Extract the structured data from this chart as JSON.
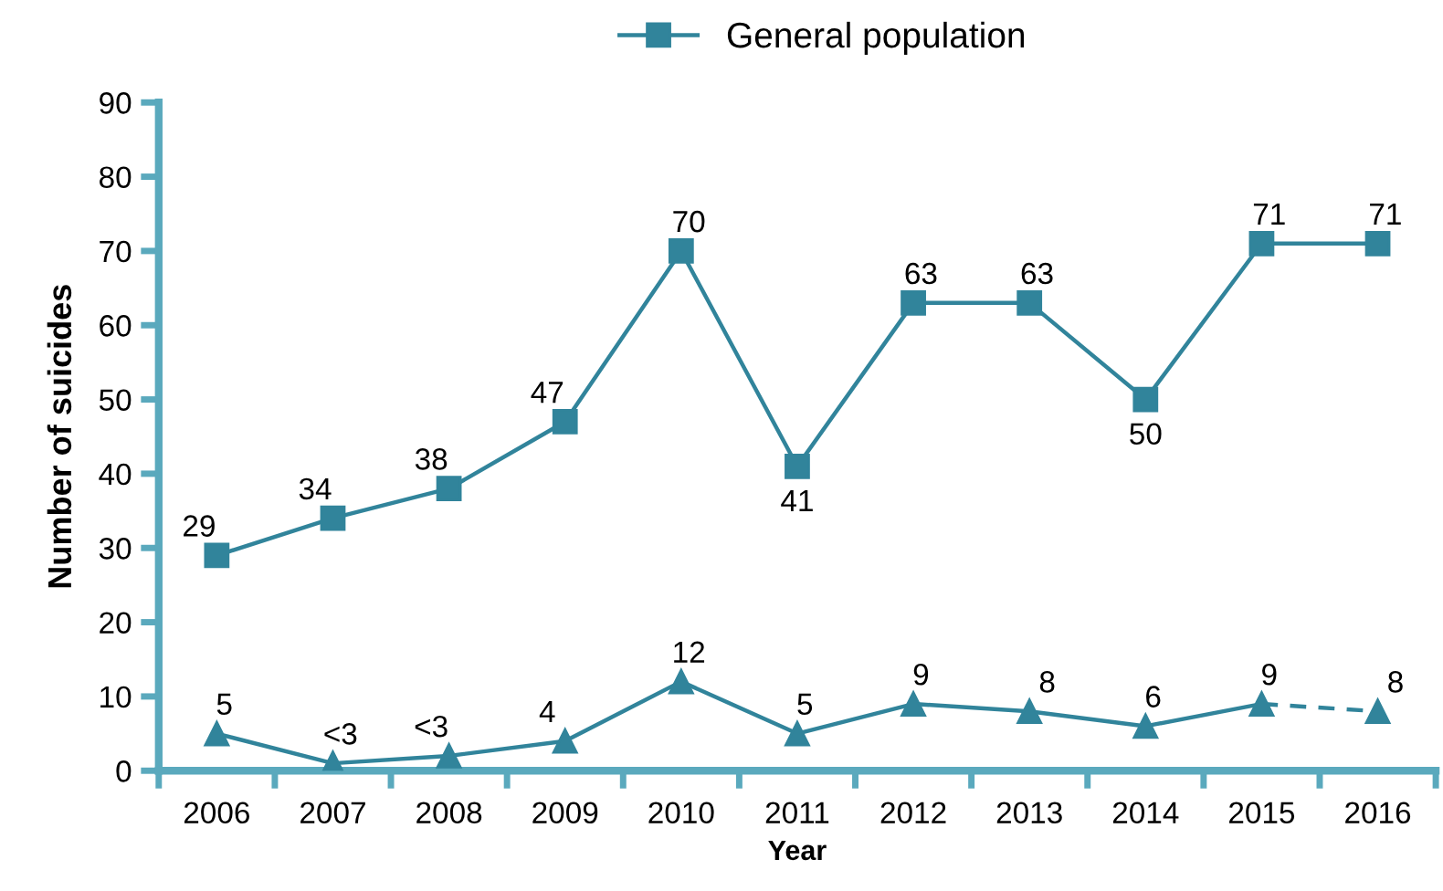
{
  "chart_data": {
    "type": "line",
    "xlabel": "Year",
    "ylabel": "Number of suicides",
    "categories": [
      "2006",
      "2007",
      "2008",
      "2009",
      "2010",
      "2011",
      "2012",
      "2013",
      "2014",
      "2015",
      "2016"
    ],
    "series": [
      {
        "name": "General population",
        "color": "#31849b",
        "marker": "square",
        "line_style": "solid",
        "values": [
          29,
          34,
          38,
          47,
          70,
          41,
          63,
          63,
          50,
          71,
          71
        ],
        "value_labels": [
          "29",
          "34",
          "38",
          "47",
          "70",
          "41",
          "63",
          "63",
          "50",
          "71",
          "71"
        ]
      },
      {
        "type": "line",
        "color": "#31849b",
        "marker": "none",
        "line_style": "solid",
        "values": [
          5,
          1,
          2,
          4,
          12,
          5,
          9,
          8,
          6,
          9,
          null
        ]
      },
      {
        "type": "line",
        "color": "#31849b",
        "marker": "none",
        "line_style": "dashed",
        "values": [
          null,
          null,
          null,
          null,
          null,
          null,
          null,
          null,
          null,
          9,
          8
        ]
      },
      {
        "type": "scatter",
        "color": "#31849b",
        "marker": "triangle",
        "values": [
          5,
          1,
          2,
          4,
          12,
          5,
          9,
          8,
          6,
          9,
          8
        ],
        "value_labels": [
          "5",
          "<3",
          "<3",
          "4",
          "12",
          "5",
          "9",
          "8",
          "6",
          "9",
          "8"
        ]
      }
    ],
    "ylim": [
      0,
      90
    ],
    "yticks": [
      0,
      10,
      20,
      30,
      40,
      50,
      60,
      70,
      80,
      90
    ],
    "legend": "top"
  }
}
